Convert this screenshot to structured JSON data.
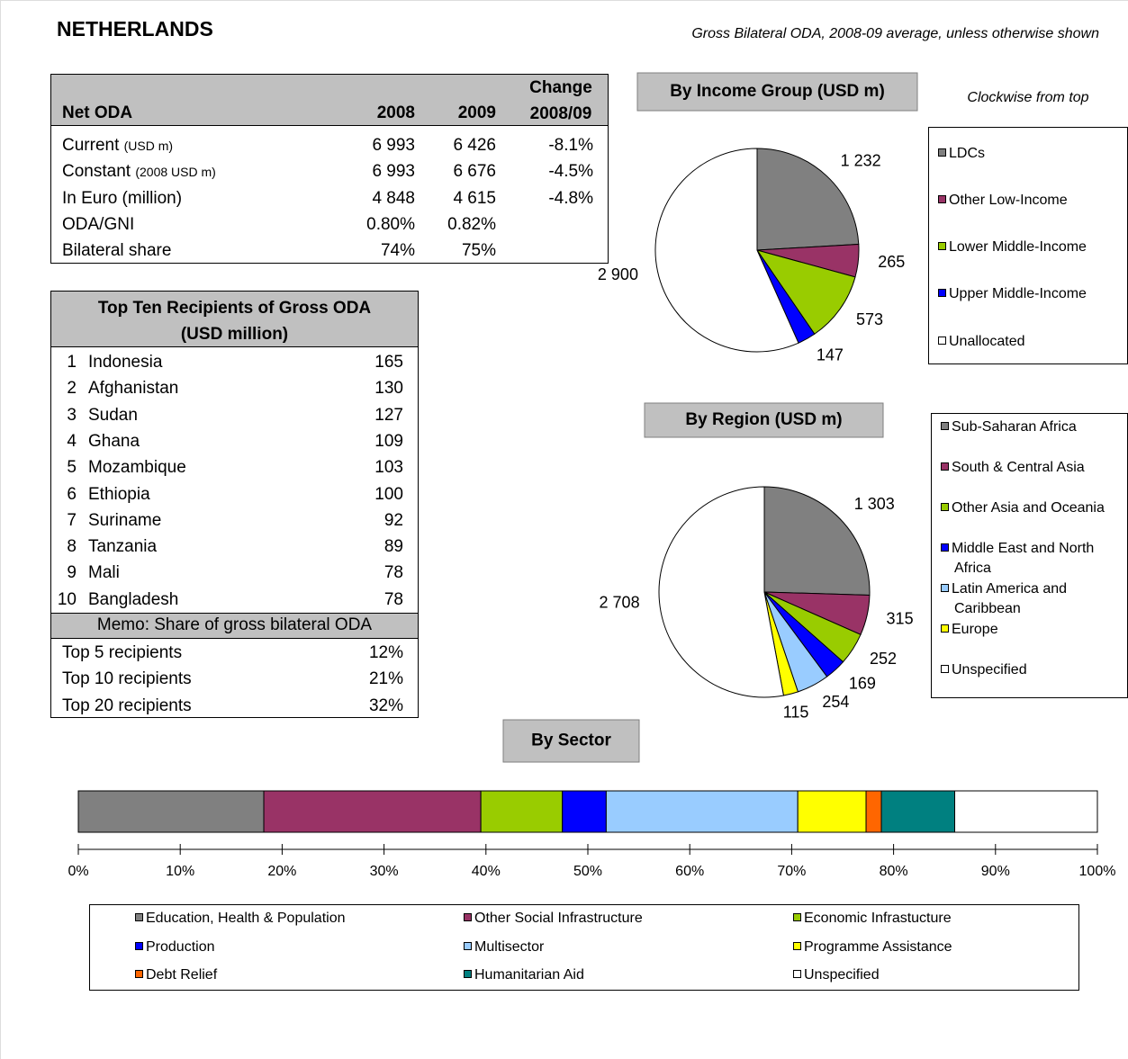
{
  "header": {
    "title": "NETHERLANDS",
    "subtitle": "Gross Bilateral ODA, 2008-09 average, unless otherwise shown"
  },
  "net_oda_table": {
    "columns": [
      "Net ODA",
      "2008",
      "2009",
      "Change\n2008/09"
    ],
    "rows": [
      {
        "label": "Current",
        "unit": "(USD m)",
        "y2008": "6 993",
        "y2009": "6 426",
        "change": "-8.1%"
      },
      {
        "label": "Constant",
        "unit": "(2008 USD m)",
        "y2008": "6 993",
        "y2009": "6 676",
        "change": "-4.5%"
      },
      {
        "label": "In Euro (million)",
        "y2008": "4 848",
        "y2009": "4 615",
        "change": "-4.8%"
      },
      {
        "label": "ODA/GNI",
        "y2008": "0.80%",
        "y2009": "0.82%"
      },
      {
        "label": "Bilateral share",
        "y2008": "74%",
        "y2009": "75%"
      }
    ]
  },
  "top_ten_table": {
    "title": "Top Ten Recipients of Gross ODA\n(USD million)",
    "rows": [
      [
        "1",
        "Indonesia",
        "165"
      ],
      [
        "2",
        "Afghanistan",
        "130"
      ],
      [
        "3",
        "Sudan",
        "127"
      ],
      [
        "4",
        "Ghana",
        "109"
      ],
      [
        "5",
        "Mozambique",
        "103"
      ],
      [
        "6",
        "Ethiopia",
        "100"
      ],
      [
        "7",
        "Suriname",
        "92"
      ],
      [
        "8",
        "Tanzania",
        "89"
      ],
      [
        "9",
        "Mali",
        "78"
      ],
      [
        "10",
        "Bangladesh",
        "78"
      ]
    ],
    "memo_title": "Memo:  Share of gross bilateral ODA",
    "memo_rows": [
      [
        "Top 5 recipients",
        "12%"
      ],
      [
        "Top 10 recipients",
        "21%"
      ],
      [
        "Top 20 recipients",
        "32%"
      ]
    ]
  },
  "chart_data": [
    {
      "type": "pie",
      "title": "By Income Group (USD m)",
      "annotation": "Clockwise from top",
      "categories": [
        "LDCs",
        "Other Low-Income",
        "Lower Middle-Income",
        "Upper Middle-Income",
        "Unallocated"
      ],
      "values": [
        1232,
        265,
        573,
        147,
        2900
      ],
      "value_labels": [
        "1 232",
        "265",
        "573",
        "147",
        "2 900"
      ],
      "colors": [
        "#808080",
        "#993366",
        "#99cc00",
        "#0000ff",
        "#ffffff"
      ]
    },
    {
      "type": "pie",
      "title": "By Region (USD m)",
      "categories": [
        "Sub-Saharan Africa",
        "South & Central Asia",
        "Other Asia and Oceania",
        "Middle East and North Africa",
        "Latin America and Caribbean",
        "Europe",
        "Unspecified"
      ],
      "values": [
        1303,
        315,
        252,
        169,
        254,
        115,
        2708
      ],
      "value_labels": [
        "1 303",
        "315",
        "252",
        "169",
        "254",
        "115",
        "2 708"
      ],
      "colors": [
        "#808080",
        "#993366",
        "#99cc00",
        "#0000ff",
        "#99ccff",
        "#ffff00",
        "#ffffff"
      ]
    },
    {
      "type": "stacked_bar",
      "title": "By Sector",
      "series": [
        {
          "name": "Education, Health & Population",
          "color": "#808080",
          "values": [
            18.2
          ]
        },
        {
          "name": "Other Social Infrastructure",
          "color": "#993366",
          "values": [
            21.3
          ]
        },
        {
          "name": "Economic Infrastucture",
          "color": "#99cc00",
          "values": [
            8.0
          ]
        },
        {
          "name": "Production",
          "color": "#0000ff",
          "values": [
            4.3
          ]
        },
        {
          "name": "Multisector",
          "color": "#99ccff",
          "values": [
            18.8
          ]
        },
        {
          "name": "Programme Assistance",
          "color": "#ffff00",
          "values": [
            6.7
          ]
        },
        {
          "name": "Debt Relief",
          "color": "#ff6600",
          "values": [
            1.5
          ]
        },
        {
          "name": "Humanitarian Aid",
          "color": "#008080",
          "values": [
            7.2
          ]
        },
        {
          "name": "Unspecified",
          "color": "#ffffff",
          "values": [
            14.0
          ]
        }
      ],
      "xlim": [
        0,
        100
      ],
      "xticks": [
        {
          "value": 0,
          "label": "0%"
        },
        {
          "value": 10,
          "label": "10%"
        },
        {
          "value": 20,
          "label": "20%"
        },
        {
          "value": 30,
          "label": "30%"
        },
        {
          "value": 40,
          "label": "40%"
        },
        {
          "value": 50,
          "label": "50%"
        },
        {
          "value": 60,
          "label": "60%"
        },
        {
          "value": 70,
          "label": "70%"
        },
        {
          "value": 80,
          "label": "80%"
        },
        {
          "value": 90,
          "label": "90%"
        },
        {
          "value": 100,
          "label": "100%"
        }
      ]
    }
  ]
}
